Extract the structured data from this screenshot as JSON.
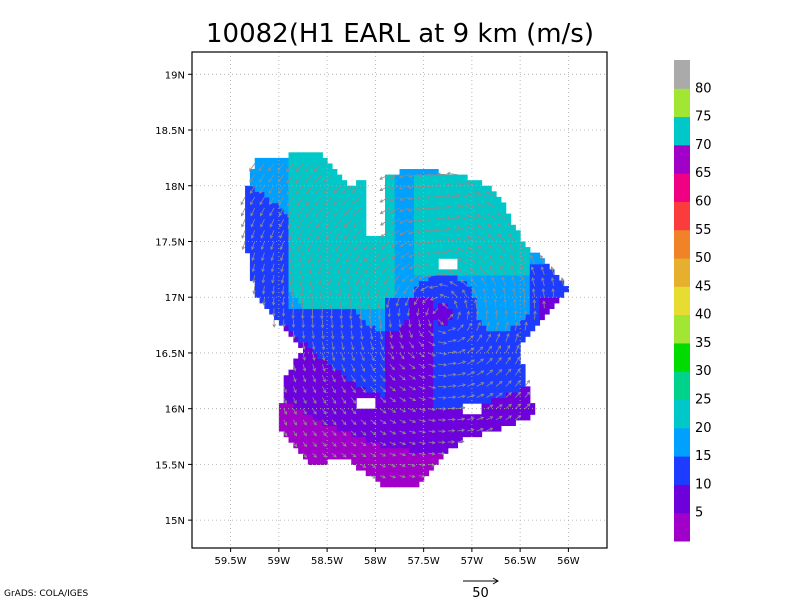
{
  "chart_data": {
    "type": "heatmap",
    "title": "10082(H1 EARL at 9 km (m/s)",
    "xlabel": "",
    "ylabel": "",
    "x_ticks": [
      "59.5W",
      "59W",
      "58.5W",
      "58W",
      "57.5W",
      "57W",
      "56.5W",
      "56W"
    ],
    "y_ticks": [
      "19N",
      "18.5N",
      "18N",
      "17.5N",
      "17N",
      "16.5N",
      "16N",
      "15.5N",
      "15N"
    ],
    "xlim": [
      -59.9,
      -55.6
    ],
    "ylim": [
      14.75,
      19.2
    ],
    "grid": true,
    "legend": {
      "placement": "right",
      "labels": [
        "5",
        "10",
        "15",
        "20",
        "25",
        "30",
        "35",
        "40",
        "45",
        "50",
        "55",
        "60",
        "65",
        "70",
        "75",
        "80"
      ],
      "colors": [
        "#a000c8",
        "#6e00dc",
        "#1e3cff",
        "#00a0ff",
        "#00c8c8",
        "#00d28c",
        "#00dc00",
        "#a0e632",
        "#e6dc32",
        "#e6af2d",
        "#f08228",
        "#fa3c3c",
        "#f00082",
        "#a000c8",
        "#00c8c8",
        "#a0e632",
        "#aaaaaa"
      ]
    },
    "storm_center": {
      "lon": -57.3,
      "lat": 16.85
    },
    "speed_field": [
      {
        "lon_range": [
          -58.9,
          -57.8
        ],
        "lat_range": [
          16.9,
          18.3
        ],
        "speed": 28
      },
      {
        "lon_range": [
          -57.6,
          -56.4
        ],
        "lat_range": [
          17.2,
          18.1
        ],
        "speed": 25
      },
      {
        "lon_range": [
          -56.4,
          -56.0
        ],
        "lat_range": [
          16.3,
          17.3
        ],
        "speed": 12
      },
      {
        "lon_range": [
          -57.9,
          -57.4
        ],
        "lat_range": [
          15.3,
          17.0
        ],
        "speed": 5
      },
      {
        "lon_range": [
          -56.3,
          -55.8
        ],
        "lat_range": [
          16.7,
          17.0
        ],
        "speed": 5
      }
    ],
    "wind_vectors": "cyclonic circulation around storm center",
    "reference_vector": {
      "speed": "50"
    },
    "credit": "GrADS: COLA/IGES"
  }
}
